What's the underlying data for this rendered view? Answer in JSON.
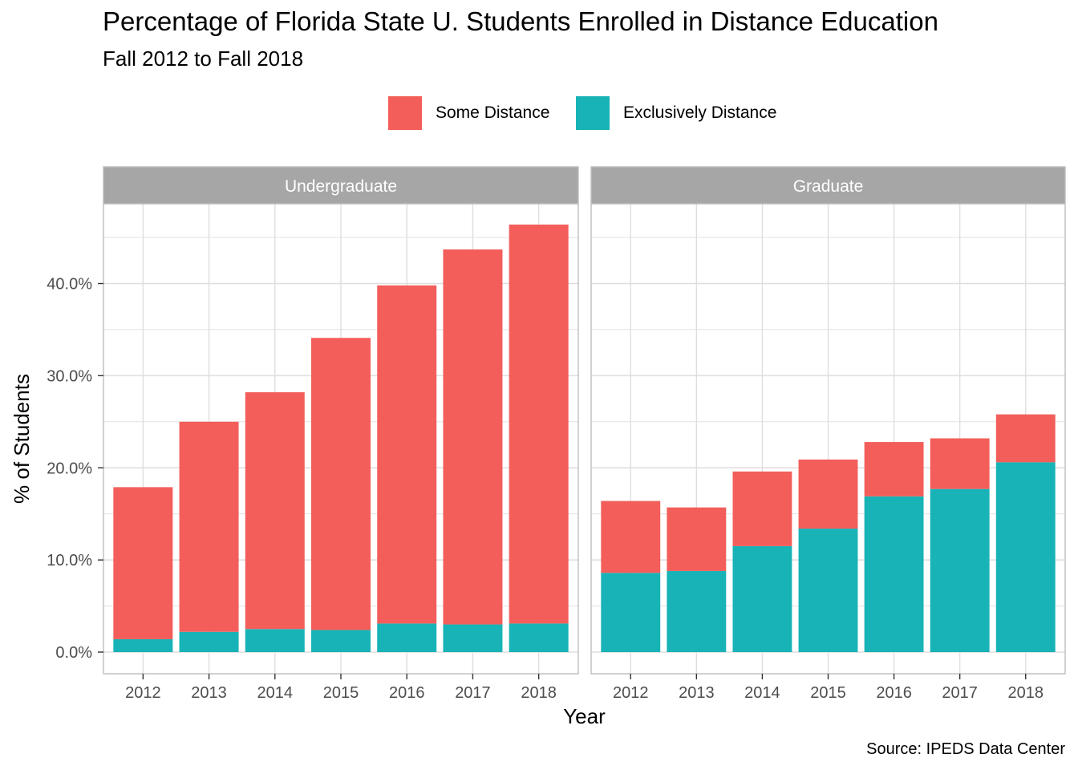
{
  "title": "Percentage of Florida State U. Students Enrolled in Distance Education",
  "subtitle": "Fall 2012 to Fall 2018",
  "caption": "Source: IPEDS Data Center",
  "colors": {
    "some_distance": "#F35E5A",
    "exclusively_distance": "#17B3B7",
    "strip_background": "#A6A6A6",
    "strip_text": "#FFFFFF",
    "grid": "#DEDEDE",
    "panel_border": "#BDBDBD",
    "tick_text": "#4D4D4D"
  },
  "chart_data": {
    "type": "bar",
    "stacked": true,
    "xlabel": "Year",
    "ylabel": "% of Students",
    "ylim": [
      0,
      0.485
    ],
    "y_ticks": [
      0,
      0.1,
      0.2,
      0.3,
      0.4
    ],
    "y_tick_labels": [
      "0.0%",
      "10.0%",
      "20.0%",
      "30.0%",
      "40.0%"
    ],
    "categories": [
      "2012",
      "2013",
      "2014",
      "2015",
      "2016",
      "2017",
      "2018"
    ],
    "legend": [
      "Some Distance",
      "Exclusively Distance"
    ],
    "legend_position": "top",
    "grid": true,
    "panels": [
      {
        "name": "Undergraduate",
        "series": [
          {
            "name": "Some Distance",
            "values": [
              0.165,
              0.228,
              0.257,
              0.317,
              0.367,
              0.407,
              0.433
            ]
          },
          {
            "name": "Exclusively Distance",
            "values": [
              0.014,
              0.022,
              0.025,
              0.024,
              0.031,
              0.03,
              0.031
            ]
          }
        ]
      },
      {
        "name": "Graduate",
        "series": [
          {
            "name": "Some Distance",
            "values": [
              0.078,
              0.069,
              0.081,
              0.075,
              0.059,
              0.055,
              0.052
            ]
          },
          {
            "name": "Exclusively Distance",
            "values": [
              0.086,
              0.088,
              0.115,
              0.134,
              0.169,
              0.177,
              0.206
            ]
          }
        ]
      }
    ]
  }
}
